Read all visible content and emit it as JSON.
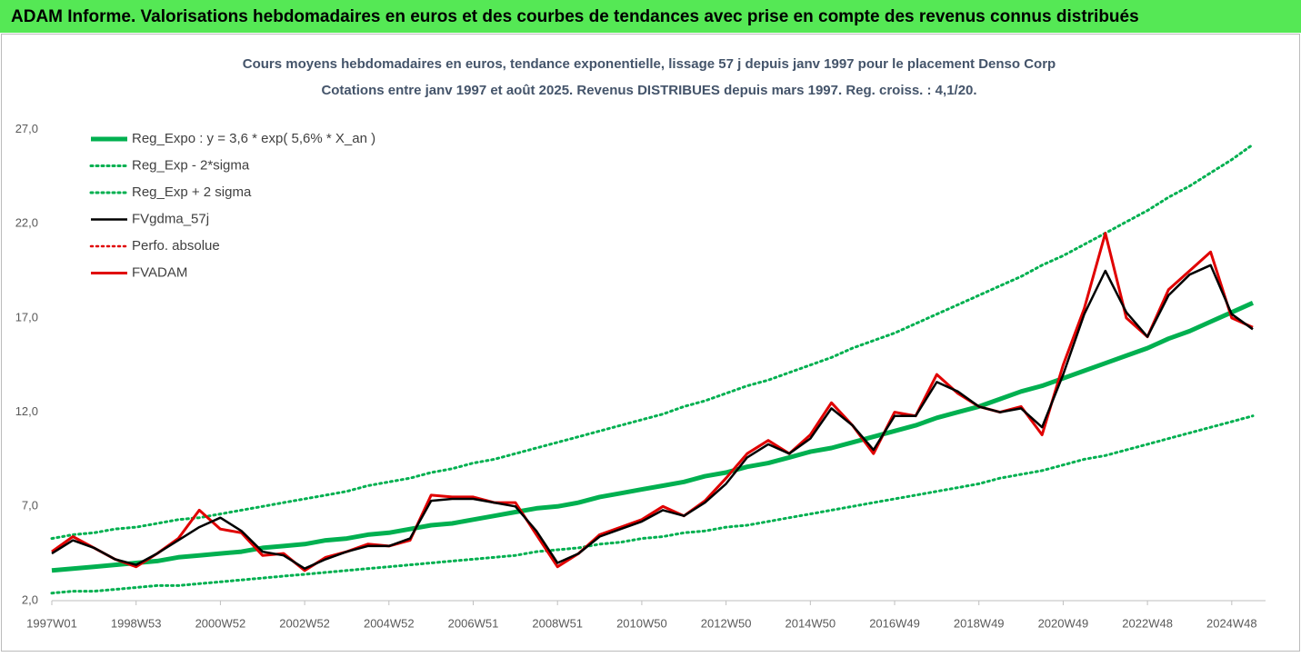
{
  "header": {
    "title": "ADAM Informe. Valorisations hebdomadaires en euros et des courbes de tendances avec prise en compte des revenus connus distribués"
  },
  "chart_data": {
    "type": "line",
    "title": "Cours moyens hebdomadaires en euros, tendance exponentielle, lissage 57 j depuis janv 1997  pour le placement Denso Corp",
    "subtitle": "Cotations entre janv 1997 et août 2025.  Revenus DISTRIBUES depuis mars 1997. Reg. croiss. : 4,1/20.",
    "categories": [
      "1997W01",
      null,
      null,
      null,
      "1998W53",
      null,
      null,
      null,
      "2000W52",
      null,
      null,
      null,
      "2002W52",
      null,
      null,
      null,
      "2004W52",
      null,
      null,
      null,
      "2006W51",
      null,
      null,
      null,
      "2008W51",
      null,
      null,
      null,
      "2010W50",
      null,
      null,
      null,
      "2012W50",
      null,
      null,
      null,
      "2014W50",
      null,
      null,
      null,
      "2016W49",
      null,
      null,
      null,
      "2018W49",
      null,
      null,
      null,
      "2020W49",
      null,
      null,
      null,
      "2022W48",
      null,
      null,
      null,
      "2024W48",
      null
    ],
    "ylim": [
      2,
      29
    ],
    "yticks": [
      {
        "value": 2,
        "label": "2,0"
      },
      {
        "value": 7,
        "label": "7,0"
      },
      {
        "value": 12,
        "label": "12,0"
      },
      {
        "value": 17,
        "label": "17,0"
      },
      {
        "value": 22,
        "label": "22,0"
      },
      {
        "value": 27,
        "label": "27,0"
      }
    ],
    "grid": false,
    "legend": "top-left",
    "series": [
      {
        "name": "Reg_Expo : y = 3,6 * exp( 5,6% *  X_an )",
        "color": "#00b050",
        "style": "solid",
        "width": 5,
        "values": [
          3.6,
          3.7,
          3.8,
          3.9,
          4.0,
          4.1,
          4.3,
          4.4,
          4.5,
          4.6,
          4.8,
          4.9,
          5.0,
          5.2,
          5.3,
          5.5,
          5.6,
          5.8,
          6.0,
          6.1,
          6.3,
          6.5,
          6.7,
          6.9,
          7.0,
          7.2,
          7.5,
          7.7,
          7.9,
          8.1,
          8.3,
          8.6,
          8.8,
          9.1,
          9.3,
          9.6,
          9.9,
          10.1,
          10.4,
          10.7,
          11.0,
          11.3,
          11.7,
          12.0,
          12.3,
          12.7,
          13.1,
          13.4,
          13.8,
          14.2,
          14.6,
          15.0,
          15.4,
          15.9,
          16.3,
          16.8,
          17.3,
          17.8
        ]
      },
      {
        "name": "Reg_Exp - 2*sigma",
        "color": "#00b050",
        "style": "dotted",
        "width": 3,
        "values": [
          2.4,
          2.5,
          2.5,
          2.6,
          2.7,
          2.8,
          2.8,
          2.9,
          3.0,
          3.1,
          3.2,
          3.3,
          3.4,
          3.5,
          3.6,
          3.7,
          3.8,
          3.9,
          4.0,
          4.1,
          4.2,
          4.3,
          4.4,
          4.6,
          4.7,
          4.8,
          5.0,
          5.1,
          5.3,
          5.4,
          5.6,
          5.7,
          5.9,
          6.0,
          6.2,
          6.4,
          6.6,
          6.8,
          7.0,
          7.2,
          7.4,
          7.6,
          7.8,
          8.0,
          8.2,
          8.5,
          8.7,
          8.9,
          9.2,
          9.5,
          9.7,
          10.0,
          10.3,
          10.6,
          10.9,
          11.2,
          11.5,
          11.8
        ]
      },
      {
        "name": "Reg_Exp + 2 sigma",
        "color": "#00b050",
        "style": "dotted",
        "width": 3,
        "values": [
          5.3,
          5.5,
          5.6,
          5.8,
          5.9,
          6.1,
          6.3,
          6.4,
          6.6,
          6.8,
          7.0,
          7.2,
          7.4,
          7.6,
          7.8,
          8.1,
          8.3,
          8.5,
          8.8,
          9.0,
          9.3,
          9.5,
          9.8,
          10.1,
          10.4,
          10.7,
          11.0,
          11.3,
          11.6,
          11.9,
          12.3,
          12.6,
          13.0,
          13.4,
          13.7,
          14.1,
          14.5,
          14.9,
          15.4,
          15.8,
          16.2,
          16.7,
          17.2,
          17.7,
          18.2,
          18.7,
          19.2,
          19.8,
          20.3,
          20.9,
          21.5,
          22.1,
          22.7,
          23.4,
          24.0,
          24.7,
          25.4,
          26.2
        ]
      },
      {
        "name": "FVgdma_57j",
        "color": "#000000",
        "style": "solid",
        "width": 2.5,
        "values": [
          4.5,
          5.2,
          4.8,
          4.2,
          3.9,
          4.5,
          5.2,
          5.9,
          6.4,
          5.7,
          4.6,
          4.4,
          3.7,
          4.2,
          4.6,
          4.9,
          4.9,
          5.3,
          7.3,
          7.4,
          7.4,
          7.2,
          7.0,
          5.7,
          4.0,
          4.5,
          5.4,
          5.8,
          6.2,
          6.8,
          6.5,
          7.2,
          8.2,
          9.6,
          10.3,
          9.8,
          10.6,
          12.2,
          11.3,
          10.0,
          11.8,
          11.8,
          13.6,
          13.1,
          12.3,
          12.0,
          12.2,
          11.2,
          14.0,
          17.2,
          19.5,
          17.3,
          16.0,
          18.2,
          19.3,
          19.8,
          17.2,
          16.4
        ]
      },
      {
        "name": "Perfo. absolue",
        "color": "#e00000",
        "style": "dotted",
        "width": 2.5
      },
      {
        "name": "FVADAM",
        "color": "#e00000",
        "style": "solid",
        "width": 3,
        "values": [
          4.6,
          5.4,
          4.8,
          4.2,
          3.8,
          4.5,
          5.3,
          6.8,
          5.8,
          5.6,
          4.4,
          4.5,
          3.6,
          4.3,
          4.6,
          5.0,
          4.9,
          5.2,
          7.6,
          7.5,
          7.5,
          7.2,
          7.2,
          5.5,
          3.8,
          4.5,
          5.5,
          5.9,
          6.3,
          7.0,
          6.5,
          7.3,
          8.5,
          9.8,
          10.5,
          9.8,
          10.8,
          12.5,
          11.3,
          9.8,
          12.0,
          11.8,
          14.0,
          13.0,
          12.3,
          12.0,
          12.3,
          10.8,
          14.5,
          17.5,
          21.5,
          17.0,
          16.0,
          18.5,
          19.5,
          20.5,
          17.0,
          16.5
        ]
      }
    ]
  }
}
